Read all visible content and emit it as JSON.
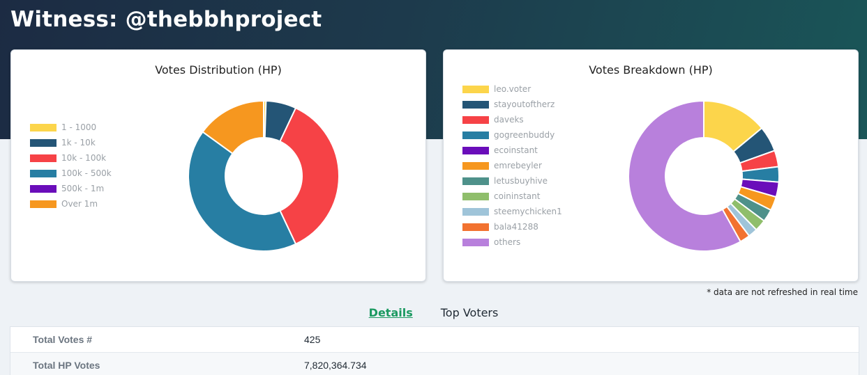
{
  "page": {
    "title": "Witness: @thebbhproject"
  },
  "charts": {
    "distribution": {
      "title": "Votes Distribution (HP)",
      "legend": [
        {
          "label": "1 - 1000",
          "color": "#fcd54b"
        },
        {
          "label": "1k - 10k",
          "color": "#245576"
        },
        {
          "label": "10k - 100k",
          "color": "#f64246"
        },
        {
          "label": "100k - 500k",
          "color": "#277ea3"
        },
        {
          "label": "500k - 1m",
          "color": "#6a0dba"
        },
        {
          "label": "Over 1m",
          "color": "#f6971f"
        }
      ]
    },
    "breakdown": {
      "title": "Votes Breakdown (HP)",
      "legend": [
        {
          "label": "leo.voter",
          "color": "#fcd54b"
        },
        {
          "label": "stayoutoftherz",
          "color": "#245576"
        },
        {
          "label": "daveks",
          "color": "#f64246"
        },
        {
          "label": "gogreenbuddy",
          "color": "#277ea3"
        },
        {
          "label": "ecoinstant",
          "color": "#6a0dba"
        },
        {
          "label": "emrebeyler",
          "color": "#f6971f"
        },
        {
          "label": "letusbuyhive",
          "color": "#4e918a"
        },
        {
          "label": "coininstant",
          "color": "#8fbe6b"
        },
        {
          "label": "steemychicken1",
          "color": "#9fc4d9"
        },
        {
          "label": "bala41288",
          "color": "#f27230"
        },
        {
          "label": "others",
          "color": "#b880dc"
        }
      ]
    }
  },
  "chart_data": [
    {
      "type": "pie",
      "title": "Votes Distribution (HP)",
      "categories": [
        "1 - 1000",
        "1k - 10k",
        "10k - 100k",
        "100k - 500k",
        "500k - 1m",
        "Over 1m"
      ],
      "values": [
        0.5,
        6.5,
        36,
        42,
        0,
        15
      ],
      "colors": [
        "#fcd54b",
        "#245576",
        "#f64246",
        "#277ea3",
        "#6a0dba",
        "#f6971f"
      ],
      "legend": "left"
    },
    {
      "type": "pie",
      "title": "Votes Breakdown (HP)",
      "categories": [
        "leo.voter",
        "stayoutoftherz",
        "daveks",
        "gogreenbuddy",
        "ecoinstant",
        "emrebeyler",
        "letusbuyhive",
        "coininstant",
        "steemychicken1",
        "bala41288",
        "others"
      ],
      "values": [
        14,
        5.5,
        3.5,
        3.3,
        3.2,
        3.0,
        2.7,
        2.5,
        2.0,
        2.2,
        58.1
      ],
      "colors": [
        "#fcd54b",
        "#245576",
        "#f64246",
        "#277ea3",
        "#6a0dba",
        "#f6971f",
        "#4e918a",
        "#8fbe6b",
        "#9fc4d9",
        "#f27230",
        "#b880dc"
      ],
      "legend": "left"
    }
  ],
  "footnote": "* data are not refreshed in real time",
  "tabs": [
    {
      "label": "Details",
      "active": true
    },
    {
      "label": "Top Voters",
      "active": false
    }
  ],
  "details": [
    {
      "label": "Total Votes #",
      "value": "425"
    },
    {
      "label": "Total HP Votes",
      "value": "7,820,364.734"
    }
  ]
}
